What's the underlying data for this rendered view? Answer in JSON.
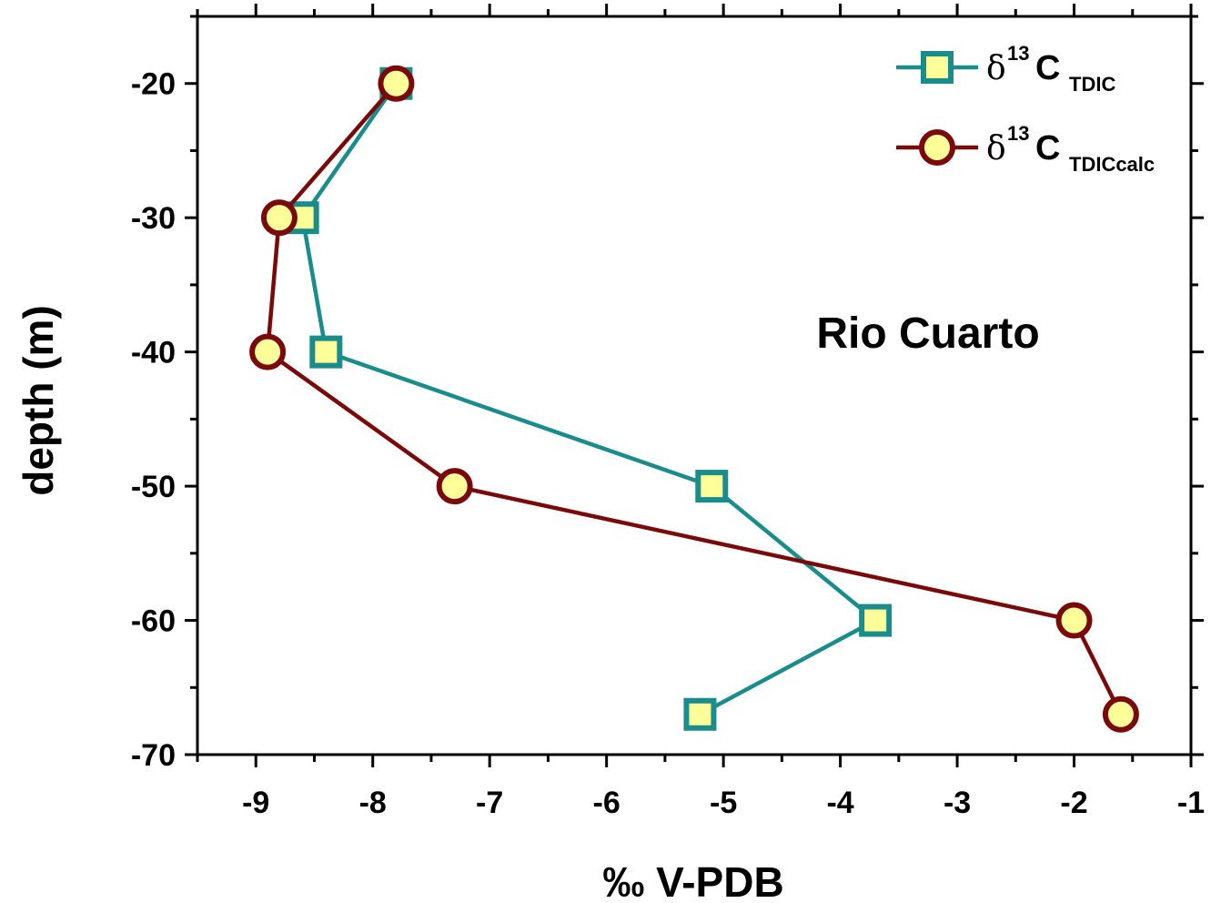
{
  "chart_data": {
    "type": "line",
    "orientation": "depth-profile",
    "xlabel": "‰ V-PDB",
    "ylabel": "depth (m)",
    "xlim": [
      -9.5,
      -1
    ],
    "ylim": [
      -70,
      -15
    ],
    "xticks": [
      -9,
      -8,
      -7,
      -6,
      -5,
      -4,
      -3,
      -2,
      -1
    ],
    "yticks": [
      -20,
      -30,
      -40,
      -50,
      -60,
      -70
    ],
    "annotation": "Rio Cuarto",
    "legend_position": "top-right",
    "series": [
      {
        "name": "δ13C TDIC",
        "legend": {
          "delta": "δ",
          "sup": "13",
          "main": "C",
          "sub": "TDIC"
        },
        "marker": "square",
        "line_color": "#1a8c8c",
        "marker_fill": "#ffff99",
        "points": [
          {
            "x": -7.8,
            "y": -20
          },
          {
            "x": -8.6,
            "y": -30
          },
          {
            "x": -8.4,
            "y": -40
          },
          {
            "x": -5.1,
            "y": -50
          },
          {
            "x": -3.7,
            "y": -60
          },
          {
            "x": -5.2,
            "y": -67
          }
        ]
      },
      {
        "name": "δ13C TDICcalc",
        "legend": {
          "delta": "δ",
          "sup": "13",
          "main": "C",
          "sub": "TDICcalc"
        },
        "marker": "circle",
        "line_color": "#7a0a0a",
        "marker_fill": "#ffff99",
        "points": [
          {
            "x": -7.8,
            "y": -20
          },
          {
            "x": -8.8,
            "y": -30
          },
          {
            "x": -8.9,
            "y": -40
          },
          {
            "x": -7.3,
            "y": -50
          },
          {
            "x": -2.0,
            "y": -60
          },
          {
            "x": -1.6,
            "y": -67
          }
        ]
      }
    ]
  }
}
